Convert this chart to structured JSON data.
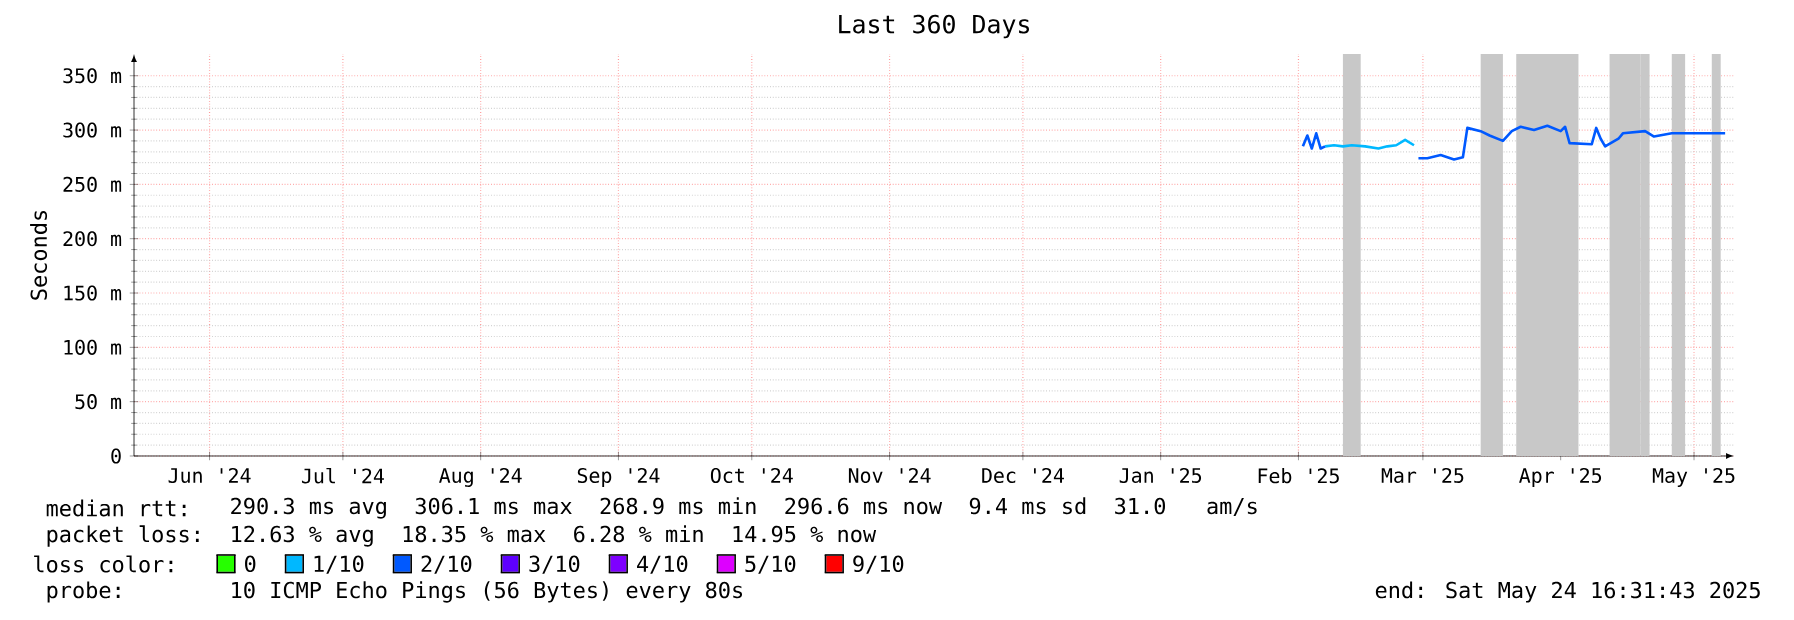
{
  "chart_data": {
    "type": "line",
    "title": "Last 360 Days",
    "ylabel": "Seconds",
    "xlim": [
      "2024-05-29",
      "2025-05-24"
    ],
    "xticks": [
      {
        "value": "2024-06-15",
        "label": "Jun '24"
      },
      {
        "value": "2024-07-15",
        "label": "Jul '24"
      },
      {
        "value": "2024-08-15",
        "label": "Aug '24"
      },
      {
        "value": "2024-09-15",
        "label": "Sep '24"
      },
      {
        "value": "2024-10-15",
        "label": "Oct '24"
      },
      {
        "value": "2024-11-15",
        "label": "Nov '24"
      },
      {
        "value": "2024-12-15",
        "label": "Dec '24"
      },
      {
        "value": "2025-01-15",
        "label": "Jan '25"
      },
      {
        "value": "2025-02-15",
        "label": "Feb '25"
      },
      {
        "value": "2025-03-15",
        "label": "Mar '25"
      },
      {
        "value": "2025-04-15",
        "label": "Apr '25"
      },
      {
        "value": "2025-05-15",
        "label": "May '25"
      }
    ],
    "ylim": [
      0,
      370
    ],
    "yticks": [
      0,
      {
        "value": 50,
        "label": "50 m"
      },
      {
        "value": 100,
        "label": "100 m"
      },
      {
        "value": 150,
        "label": "150 m"
      },
      {
        "value": 200,
        "label": "200 m"
      },
      {
        "value": 250,
        "label": "250 m"
      },
      {
        "value": 300,
        "label": "300 m"
      },
      {
        "value": 350,
        "label": "350 m"
      }
    ],
    "grid": true,
    "legend": "bottom",
    "legend_title": "loss color:",
    "series": [
      {
        "name": "0",
        "color": "#26ff00"
      },
      {
        "name": "1/10",
        "color": "#00b8ff",
        "x": [
          "2025-02-21",
          "2025-02-23",
          "2025-02-25",
          "2025-02-27",
          "2025-03-02",
          "2025-03-05",
          "2025-03-07",
          "2025-03-09",
          "2025-03-11",
          "2025-03-13"
        ],
        "values": [
          285,
          286,
          285,
          286,
          285,
          283,
          285,
          286,
          291,
          286
        ]
      },
      {
        "name": "2/10",
        "color": "#0059ff",
        "x": [
          "2025-02-16",
          "2025-02-17",
          "2025-02-18",
          "2025-02-19",
          "2025-02-20",
          "2025-02-21",
          "2025-03-13",
          "2025-03-14",
          "2025-03-16",
          "2025-03-19",
          "2025-03-22",
          "2025-03-24",
          "2025-03-25",
          "2025-03-28",
          "2025-03-30",
          "2025-04-02",
          "2025-04-04",
          "2025-04-06",
          "2025-04-09",
          "2025-04-12",
          "2025-04-15",
          "2025-04-16",
          "2025-04-17",
          "2025-04-22",
          "2025-04-23",
          "2025-04-24",
          "2025-04-25",
          "2025-04-28",
          "2025-04-29",
          "2025-05-04",
          "2025-05-06",
          "2025-05-10",
          "2025-05-16",
          "2025-05-22"
        ],
        "values": [
          285,
          295,
          283,
          297,
          283,
          285,
          null,
          274,
          274,
          277,
          273,
          275,
          302,
          299,
          295,
          290,
          299,
          303,
          300,
          304,
          299,
          303,
          288,
          287,
          302,
          292,
          285,
          292,
          297,
          299,
          294,
          297,
          297,
          297
        ]
      },
      {
        "name": "3/10",
        "color": "#5e00ff"
      },
      {
        "name": "4/10",
        "color": "#7e00ff"
      },
      {
        "name": "5/10",
        "color": "#dd00ff"
      },
      {
        "name": "9/10",
        "color": "#ff0000"
      }
    ],
    "bands": [
      {
        "axis": "x",
        "from": "2025-02-25",
        "to": "2025-03-01",
        "color": "#c8c8c8"
      },
      {
        "axis": "x",
        "from": "2025-03-28",
        "to": "2025-04-02",
        "color": "#c8c8c8"
      },
      {
        "axis": "x",
        "from": "2025-04-05",
        "to": "2025-04-19",
        "color": "#c8c8c8"
      },
      {
        "axis": "x",
        "from": "2025-04-26",
        "to": "2025-05-03",
        "color": "#c8c8c8"
      },
      {
        "axis": "x",
        "from": "2025-05-03",
        "to": "2025-05-05",
        "color": "#c8c8c8"
      },
      {
        "axis": "x",
        "from": "2025-05-10",
        "to": "2025-05-13",
        "color": "#c8c8c8"
      },
      {
        "axis": "x",
        "from": "2025-05-19",
        "to": "2025-05-21",
        "color": "#c8c8c8"
      }
    ],
    "annotations": [
      "median rtt:",
      "290.3 ms avg  306.1 ms max  268.9 ms min  296.6 ms now  9.4 ms sd  31.0   am/s",
      "packet loss:",
      "12.63 % avg  18.35 % max  6.28 % min  14.95 % now",
      "probe:",
      "10 ICMP Echo Pings (56 Bytes) every 80s",
      "end: Sat May 24 16:31:43 2025"
    ]
  }
}
